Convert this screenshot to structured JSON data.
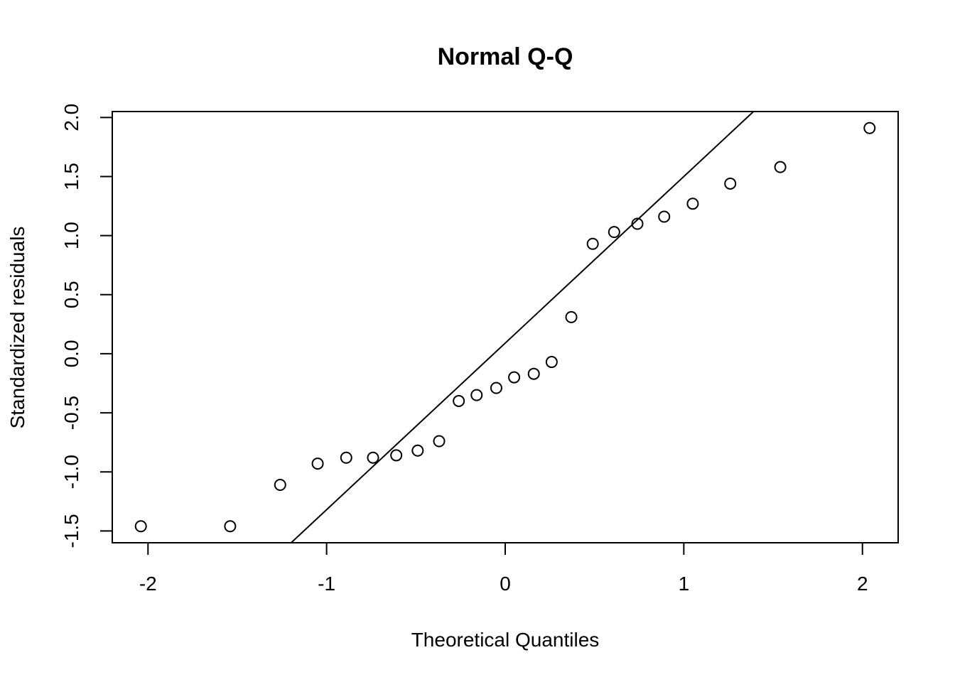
{
  "chart_data": {
    "type": "scatter",
    "title": "Normal Q-Q",
    "xlabel": "Theoretical Quantiles",
    "ylabel": "Standardized residuals",
    "xlim": [
      -2.2,
      2.2
    ],
    "ylim": [
      -1.6,
      2.05
    ],
    "x_ticks": [
      -2,
      -1,
      0,
      1,
      2
    ],
    "x_tick_labels": [
      "-2",
      "-1",
      "0",
      "1",
      "2"
    ],
    "y_ticks": [
      -1.5,
      -1.0,
      -0.5,
      0.0,
      0.5,
      1.0,
      1.5,
      2.0
    ],
    "y_tick_labels": [
      "-1.5",
      "-1.0",
      "-0.5",
      "0.0",
      "0.5",
      "1.0",
      "1.5",
      "2.0"
    ],
    "grid": false,
    "points": [
      {
        "x": -2.04,
        "y": -1.46
      },
      {
        "x": -1.54,
        "y": -1.46
      },
      {
        "x": -1.26,
        "y": -1.11
      },
      {
        "x": -1.05,
        "y": -0.93
      },
      {
        "x": -0.89,
        "y": -0.88
      },
      {
        "x": -0.74,
        "y": -0.88
      },
      {
        "x": -0.61,
        "y": -0.86
      },
      {
        "x": -0.49,
        "y": -0.82
      },
      {
        "x": -0.37,
        "y": -0.74
      },
      {
        "x": -0.26,
        "y": -0.4
      },
      {
        "x": -0.16,
        "y": -0.35
      },
      {
        "x": -0.05,
        "y": -0.29
      },
      {
        "x": 0.05,
        "y": -0.2
      },
      {
        "x": 0.16,
        "y": -0.17
      },
      {
        "x": 0.26,
        "y": -0.07
      },
      {
        "x": 0.37,
        "y": 0.31
      },
      {
        "x": 0.49,
        "y": 0.93
      },
      {
        "x": 0.61,
        "y": 1.03
      },
      {
        "x": 0.74,
        "y": 1.1
      },
      {
        "x": 0.89,
        "y": 1.16
      },
      {
        "x": 1.05,
        "y": 1.27
      },
      {
        "x": 1.26,
        "y": 1.44
      },
      {
        "x": 1.54,
        "y": 1.58
      },
      {
        "x": 2.04,
        "y": 1.91
      }
    ],
    "reference_line": {
      "intercept": 0.09,
      "slope": 1.41
    }
  }
}
